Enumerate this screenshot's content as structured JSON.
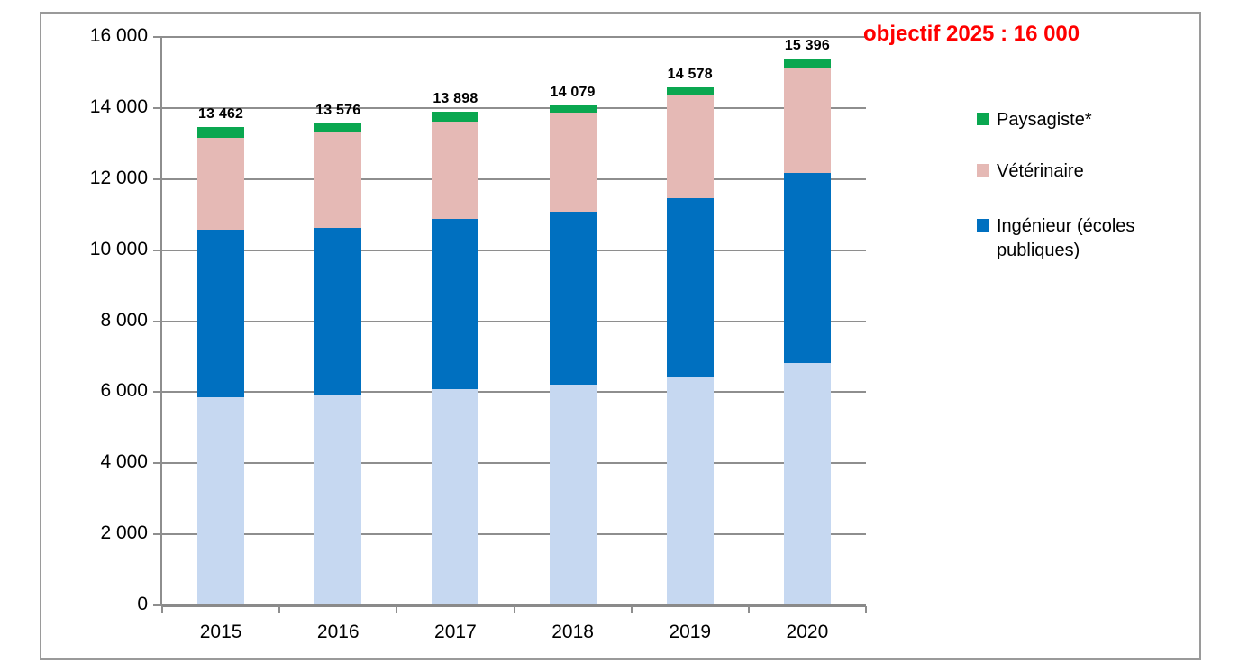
{
  "window": {
    "background": "#ffffff",
    "frame_border_color": "#9a9a9a",
    "gridline_color": "#8e8e8e"
  },
  "annotation": {
    "text": "objectif 2025 : 16 000",
    "color": "#ff0000"
  },
  "legend": {
    "position": "right",
    "items": [
      {
        "label": "Paysagiste*",
        "color": "#0aa750"
      },
      {
        "label": "Vétérinaire",
        "color": "#e5b9b5"
      },
      {
        "label": "Ingénieur (écoles publiques)",
        "color": "#0070c0"
      }
    ]
  },
  "chart_data": {
    "type": "bar",
    "stacked": true,
    "grid": true,
    "legend_position": "right",
    "title": "",
    "xlabel": "",
    "ylabel": "",
    "ylim": [
      0,
      16000
    ],
    "ytick_step": 2000,
    "ytick_labels": [
      "0",
      "2 000",
      "4 000",
      "6 000",
      "8 000",
      "10 000",
      "12 000",
      "14 000",
      "16 000"
    ],
    "categories": [
      "2015",
      "2016",
      "2017",
      "2018",
      "2019",
      "2020"
    ],
    "series": [
      {
        "name": "",
        "legend_visible": false,
        "color": "#c6d8f1",
        "values": [
          5870,
          5920,
          6080,
          6200,
          6420,
          6820
        ]
      },
      {
        "name": "Ingénieur (écoles publiques)",
        "legend_visible": true,
        "color": "#0070c0",
        "values": [
          4710,
          4700,
          4790,
          4870,
          5050,
          5350
        ]
      },
      {
        "name": "Vétérinaire",
        "legend_visible": true,
        "color": "#e5b9b5",
        "values": [
          2580,
          2680,
          2755,
          2805,
          2905,
          2960
        ]
      },
      {
        "name": "Paysagiste*",
        "legend_visible": true,
        "color": "#0aa750",
        "values": [
          302,
          276,
          273,
          204,
          203,
          266
        ]
      }
    ],
    "totals_labels": [
      "13 462",
      "13 576",
      "13 898",
      "14 079",
      "14 578",
      "15 396"
    ],
    "annotation": "objectif 2025 : 16 000"
  }
}
